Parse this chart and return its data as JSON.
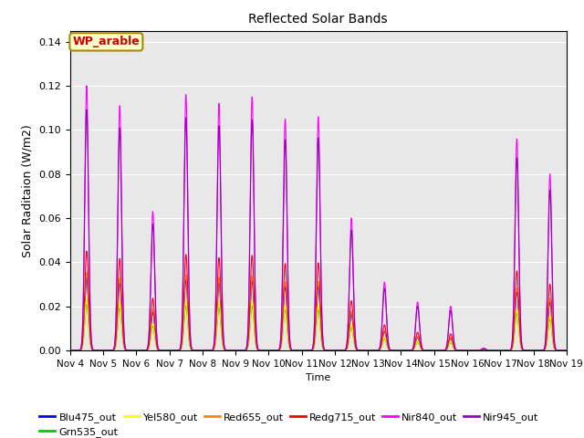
{
  "title": "Reflected Solar Bands",
  "ylabel": "Solar Raditaion (W/m2)",
  "xlabel": "Time",
  "annotation": "WP_arable",
  "ylim": [
    0,
    0.145
  ],
  "n_days": 15,
  "x_tick_labels": [
    "Nov 4",
    "Nov 5",
    "Nov 6",
    "Nov 7",
    "Nov 8",
    "Nov 9",
    "Nov 10",
    "Nov 11",
    "Nov 12",
    "Nov 13",
    "Nov 14",
    "Nov 15",
    "Nov 16",
    "Nov 17",
    "Nov 18",
    "Nov 19"
  ],
  "yticks": [
    0.0,
    0.02,
    0.04,
    0.06,
    0.08,
    0.1,
    0.12,
    0.14
  ],
  "background_color": "#e8e8e8",
  "nir840_peaks": [
    0.12,
    0.111,
    0.063,
    0.116,
    0.112,
    0.115,
    0.105,
    0.106,
    0.06,
    0.031,
    0.022,
    0.02,
    0.001,
    0.096,
    0.08
  ],
  "band_scales": {
    "Blu475_out": 0.275,
    "Grn535_out": 0.175,
    "Yel580_out": 0.195,
    "Red655_out": 0.295,
    "Redg715_out": 0.375,
    "Nir840_out": 1.0,
    "Nir945_out": 0.91
  },
  "band_colors": {
    "Blu475_out": "#0000ff",
    "Grn535_out": "#00cc00",
    "Yel580_out": "#ffff00",
    "Red655_out": "#ff8800",
    "Redg715_out": "#ff0000",
    "Nir840_out": "#ff00ff",
    "Nir945_out": "#9900bb"
  },
  "band_order": [
    "Blu475_out",
    "Grn535_out",
    "Yel580_out",
    "Red655_out",
    "Redg715_out",
    "Nir840_out",
    "Nir945_out"
  ],
  "legend_row1": [
    "Blu475_out",
    "Grn535_out",
    "Yel580_out",
    "Red655_out",
    "Redg715_out",
    "Nir840_out"
  ],
  "legend_row2": [
    "Nir945_out"
  ]
}
